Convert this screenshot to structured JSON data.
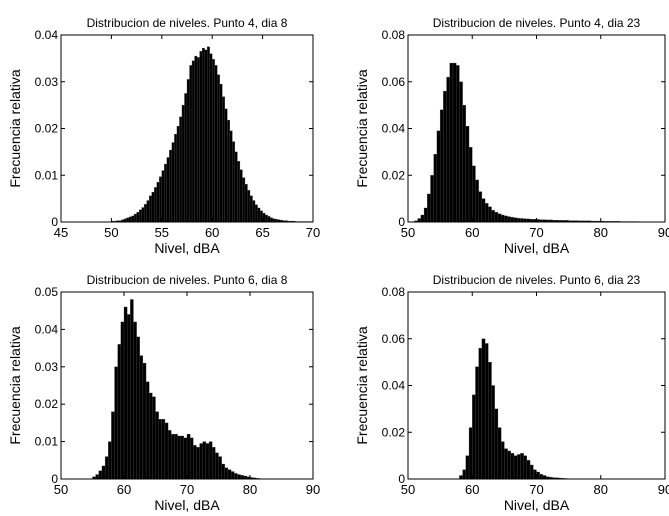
{
  "chart_data": [
    {
      "type": "bar",
      "title": "Distribucion de niveles. Punto 4, dia 8",
      "xlabel": "Nivel, dBA",
      "ylabel": "Frecuencia relativa",
      "xlim": [
        45,
        70
      ],
      "ylim": [
        0,
        0.04
      ],
      "xticks": [
        "45",
        "50",
        "55",
        "60",
        "65",
        "70"
      ],
      "yticks": [
        "0",
        "0.01",
        "0.02",
        "0.03",
        "0.04"
      ],
      "grid": false,
      "bar_color": "#000000",
      "bin_width": 0.25,
      "x": [
        50.0,
        50.25,
        50.5,
        50.75,
        51.0,
        51.25,
        51.5,
        51.75,
        52.0,
        52.25,
        52.5,
        52.75,
        53.0,
        53.25,
        53.5,
        53.75,
        54.0,
        54.25,
        54.5,
        54.75,
        55.0,
        55.25,
        55.5,
        55.75,
        56.0,
        56.25,
        56.5,
        56.75,
        57.0,
        57.25,
        57.5,
        57.75,
        58.0,
        58.25,
        58.5,
        58.75,
        59.0,
        59.25,
        59.5,
        59.75,
        60.0,
        60.25,
        60.5,
        60.75,
        61.0,
        61.25,
        61.5,
        61.75,
        62.0,
        62.25,
        62.5,
        62.75,
        63.0,
        63.25,
        63.5,
        63.75,
        64.0,
        64.25,
        64.5,
        64.75,
        65.0,
        65.25,
        65.5,
        65.75,
        66.0,
        66.25,
        66.5,
        66.75,
        67.0,
        67.25,
        67.5,
        67.75,
        68.0,
        68.25,
        68.5,
        68.75,
        69.0,
        69.25,
        69.5,
        69.75
      ],
      "values": [
        0.0002,
        0.0002,
        0.0003,
        0.0003,
        0.0005,
        0.0007,
        0.0009,
        0.0011,
        0.0013,
        0.0017,
        0.0021,
        0.0026,
        0.0031,
        0.0038,
        0.0046,
        0.0056,
        0.0064,
        0.0074,
        0.0085,
        0.0097,
        0.011,
        0.0124,
        0.0138,
        0.0154,
        0.017,
        0.0188,
        0.0205,
        0.0225,
        0.025,
        0.0275,
        0.0305,
        0.0335,
        0.0345,
        0.0355,
        0.0352,
        0.0365,
        0.0372,
        0.0368,
        0.0375,
        0.036,
        0.0348,
        0.0335,
        0.0315,
        0.0295,
        0.0268,
        0.0242,
        0.0218,
        0.0195,
        0.0172,
        0.015,
        0.013,
        0.0112,
        0.0095,
        0.0081,
        0.0068,
        0.0056,
        0.0046,
        0.0037,
        0.003,
        0.0024,
        0.0019,
        0.0015,
        0.0012,
        0.0009,
        0.0007,
        0.0006,
        0.0005,
        0.0004,
        0.0003,
        0.0003,
        0.0002,
        0.0002,
        0.0002,
        0.0001,
        0.0001,
        0.0001,
        0.0001,
        0.0001,
        0.0001,
        0.0001
      ]
    },
    {
      "type": "bar",
      "title": "Distribucion de niveles. Punto 4, dia 23",
      "xlabel": "Nivel, dBA",
      "ylabel": "Frecuencia relativa",
      "xlim": [
        50,
        90
      ],
      "ylim": [
        0,
        0.08
      ],
      "xticks": [
        "50",
        "60",
        "70",
        "80",
        "90"
      ],
      "yticks": [
        "0",
        "0.02",
        "0.04",
        "0.06",
        "0.08"
      ],
      "grid": false,
      "bar_color": "#000000",
      "bin_width": 0.5,
      "x": [
        51.0,
        51.5,
        52.0,
        52.5,
        53.0,
        53.5,
        54.0,
        54.5,
        55.0,
        55.5,
        56.0,
        56.5,
        57.0,
        57.5,
        58.0,
        58.5,
        59.0,
        59.5,
        60.0,
        60.5,
        61.0,
        61.5,
        62.0,
        62.5,
        63.0,
        63.5,
        64.0,
        64.5,
        65.0,
        65.5,
        66.0,
        66.5,
        67.0,
        67.5,
        68.0,
        68.5,
        69.0,
        69.5,
        70.0,
        70.5,
        71.0,
        71.5,
        72.0,
        72.5,
        73.0,
        73.5,
        74.0,
        74.5,
        75.0,
        75.5,
        76.0,
        76.5,
        77.0,
        77.5,
        78.0,
        78.5,
        79.0,
        79.5,
        80.0,
        80.5,
        81.0,
        81.5,
        82.0,
        82.5,
        83.0,
        83.5,
        84.0,
        84.5,
        85.0,
        85.5,
        86.0,
        86.5,
        87.0
      ],
      "values": [
        0.0005,
        0.0015,
        0.003,
        0.006,
        0.012,
        0.02,
        0.029,
        0.039,
        0.048,
        0.056,
        0.062,
        0.068,
        0.068,
        0.067,
        0.06,
        0.05,
        0.041,
        0.032,
        0.024,
        0.018,
        0.013,
        0.01,
        0.008,
        0.0065,
        0.005,
        0.0042,
        0.0035,
        0.003,
        0.0026,
        0.0023,
        0.002,
        0.0018,
        0.0016,
        0.0015,
        0.0014,
        0.0013,
        0.0012,
        0.0012,
        0.0011,
        0.001,
        0.001,
        0.0009,
        0.0009,
        0.0008,
        0.0008,
        0.0007,
        0.0007,
        0.0007,
        0.0006,
        0.0006,
        0.0006,
        0.0005,
        0.0005,
        0.0005,
        0.0005,
        0.0004,
        0.0004,
        0.0004,
        0.0004,
        0.0003,
        0.0003,
        0.0003,
        0.0003,
        0.0003,
        0.0002,
        0.0002,
        0.0002,
        0.0002,
        0.0002,
        0.0002,
        0.0001,
        0.0001,
        0.0001
      ]
    },
    {
      "type": "bar",
      "title": "Distribucion de niveles. Punto 6, dia 8",
      "xlabel": "Nivel, dBA",
      "ylabel": "Frecuencia relativa",
      "xlim": [
        50,
        90
      ],
      "ylim": [
        0,
        0.05
      ],
      "xticks": [
        "50",
        "60",
        "70",
        "80",
        "90"
      ],
      "yticks": [
        "0",
        "0.01",
        "0.02",
        "0.03",
        "0.04",
        "0.05"
      ],
      "grid": false,
      "bar_color": "#000000",
      "bin_width": 0.5,
      "x": [
        55.0,
        55.5,
        56.0,
        56.5,
        57.0,
        57.5,
        58.0,
        58.5,
        59.0,
        59.5,
        60.0,
        60.5,
        61.0,
        61.5,
        62.0,
        62.5,
        63.0,
        63.5,
        64.0,
        64.5,
        65.0,
        65.5,
        66.0,
        66.5,
        67.0,
        67.5,
        68.0,
        68.5,
        69.0,
        69.5,
        70.0,
        70.5,
        71.0,
        71.5,
        72.0,
        72.5,
        73.0,
        73.5,
        74.0,
        74.5,
        75.0,
        75.5,
        76.0,
        76.5,
        77.0,
        77.5,
        78.0,
        78.5,
        79.0,
        79.5,
        80.0,
        80.5,
        81.0
      ],
      "values": [
        0.0006,
        0.0012,
        0.0022,
        0.0035,
        0.006,
        0.01,
        0.018,
        0.03,
        0.036,
        0.042,
        0.046,
        0.044,
        0.048,
        0.042,
        0.038,
        0.033,
        0.031,
        0.026,
        0.023,
        0.022,
        0.018,
        0.016,
        0.016,
        0.015,
        0.013,
        0.012,
        0.012,
        0.0115,
        0.0115,
        0.011,
        0.012,
        0.011,
        0.009,
        0.0085,
        0.0095,
        0.01,
        0.0095,
        0.01,
        0.0085,
        0.007,
        0.006,
        0.004,
        0.003,
        0.0025,
        0.002,
        0.0015,
        0.0012,
        0.001,
        0.0008,
        0.0006,
        0.0004,
        0.0003,
        0.0002
      ]
    },
    {
      "type": "bar",
      "title": "Distribucion de niveles. Punto 6, dia 23",
      "xlabel": "Nivel, dBA",
      "ylabel": "Frecuencia relativa",
      "xlim": [
        50,
        90
      ],
      "ylim": [
        0,
        0.08
      ],
      "xticks": [
        "50",
        "60",
        "70",
        "80",
        "90"
      ],
      "yticks": [
        "0",
        "0.02",
        "0.04",
        "0.06",
        "0.08"
      ],
      "grid": false,
      "bar_color": "#000000",
      "bin_width": 0.5,
      "x": [
        58.0,
        58.5,
        59.0,
        59.5,
        60.0,
        60.5,
        61.0,
        61.5,
        62.0,
        62.5,
        63.0,
        63.5,
        64.0,
        64.5,
        65.0,
        65.5,
        66.0,
        66.5,
        67.0,
        67.5,
        68.0,
        68.5,
        69.0,
        69.5,
        70.0,
        70.5,
        71.0,
        71.5,
        72.0,
        72.5,
        73.0,
        73.5,
        74.0,
        74.5,
        75.0
      ],
      "values": [
        0.0015,
        0.004,
        0.01,
        0.022,
        0.036,
        0.048,
        0.056,
        0.06,
        0.058,
        0.05,
        0.04,
        0.03,
        0.022,
        0.016,
        0.013,
        0.012,
        0.011,
        0.01,
        0.0105,
        0.011,
        0.01,
        0.008,
        0.006,
        0.004,
        0.003,
        0.002,
        0.0015,
        0.001,
        0.0008,
        0.0006,
        0.0005,
        0.0004,
        0.0003,
        0.0002,
        0.0001
      ]
    }
  ]
}
